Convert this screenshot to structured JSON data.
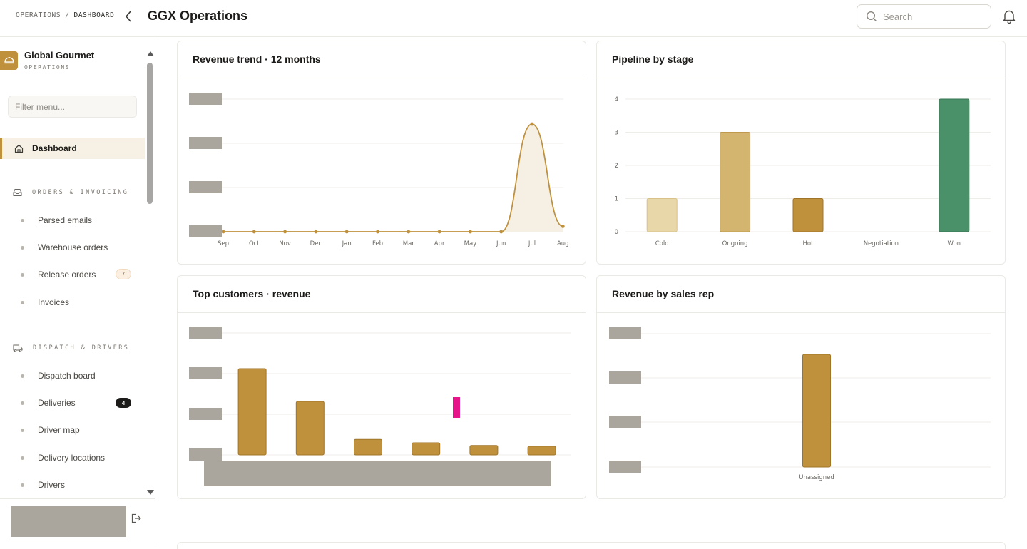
{
  "header": {
    "breadcrumb": [
      "OPERATIONS",
      "DASHBOARD"
    ],
    "title": "GGX Operations",
    "search_placeholder": "Search"
  },
  "sidebar": {
    "brand_name": "Global Gourmet",
    "brand_sub": "OPERATIONS",
    "filter_placeholder": "Filter menu...",
    "active_item": "Dashboard",
    "sections": [
      {
        "title": "ORDERS & INVOICING",
        "items": [
          {
            "label": "Parsed emails"
          },
          {
            "label": "Warehouse orders"
          },
          {
            "label": "Release orders",
            "badge": "7"
          },
          {
            "label": "Invoices"
          }
        ]
      },
      {
        "title": "DISPATCH & DRIVERS",
        "items": [
          {
            "label": "Dispatch board"
          },
          {
            "label": "Deliveries",
            "badge": "4"
          },
          {
            "label": "Driver map"
          },
          {
            "label": "Delivery locations"
          },
          {
            "label": "Drivers"
          }
        ]
      }
    ]
  },
  "colors": {
    "accent": "#bf913d",
    "accent_light": "#e8d7a8",
    "accent_mid": "#d4b56f",
    "won": "#4a9169",
    "placeholder": "#aaa69d",
    "highlight": "#e6168a"
  },
  "chart_data": [
    {
      "type": "area",
      "title": "Revenue trend · 12 months",
      "categories": [
        "Sep",
        "Oct",
        "Nov",
        "Dec",
        "Jan",
        "Feb",
        "Mar",
        "Apr",
        "May",
        "Jun",
        "Jul",
        "Aug"
      ],
      "values": [
        0,
        0,
        0,
        0,
        0,
        0,
        0,
        0,
        0,
        0,
        1.0,
        0.05
      ],
      "grid": true
    },
    {
      "type": "bar",
      "title": "Pipeline by stage",
      "categories": [
        "Cold",
        "Ongoing",
        "Hot",
        "Negotiation",
        "Won"
      ],
      "values": [
        1,
        3,
        1,
        0,
        4
      ],
      "yticks": [
        "0",
        "1",
        "2",
        "3",
        "4"
      ],
      "ylim": [
        0,
        4
      ],
      "grid": true
    },
    {
      "type": "bar",
      "title": "Top customers · revenue",
      "values": [
        1.0,
        0.62,
        0.18,
        0.14,
        0.11,
        0.1
      ],
      "grid": true
    },
    {
      "type": "bar",
      "title": "Revenue by sales rep",
      "categories": [
        "Unassigned"
      ],
      "values": [
        1.0
      ],
      "grid": true
    }
  ]
}
